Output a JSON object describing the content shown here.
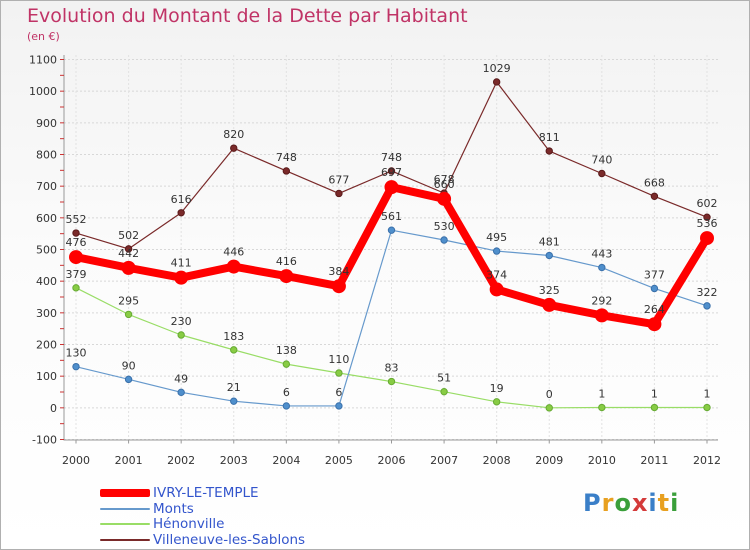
{
  "header": {
    "title": "Evolution du Montant de la Dette par Habitant",
    "subtitle": "(en €)"
  },
  "logo": {
    "letters": [
      "P",
      "r",
      "o",
      "x",
      "i",
      "t",
      "i"
    ],
    "colors": [
      "#3a7fc8",
      "#e8a020",
      "#3a9f3a",
      "#d43a3a",
      "#3a7fc8",
      "#e8a020",
      "#3a9f3a"
    ]
  },
  "chart_data": {
    "type": "line",
    "x": [
      "2000",
      "2001",
      "2002",
      "2003",
      "2004",
      "2005",
      "2006",
      "2007",
      "2008",
      "2009",
      "2010",
      "2011",
      "2012"
    ],
    "ylim": [
      -100,
      1100
    ],
    "yticks": [
      "-100",
      "0",
      "100",
      "200",
      "300",
      "400",
      "500",
      "600",
      "700",
      "800",
      "900",
      "1000",
      "1100"
    ],
    "grid": true,
    "legend_position": "bottom-left",
    "series": [
      {
        "name": "Villeneuve-les-Sablons",
        "color": "#7a2a2a",
        "values": [
          552,
          502,
          616,
          820,
          748,
          677,
          748,
          678,
          1029,
          811,
          740,
          668,
          602
        ]
      },
      {
        "name": "Hénonville",
        "color": "#99dd66",
        "values": [
          379,
          295,
          230,
          183,
          138,
          110,
          83,
          51,
          19,
          0,
          1,
          1,
          1
        ]
      },
      {
        "name": "Monts",
        "color": "#6699cc",
        "values": [
          130,
          90,
          49,
          21,
          6,
          6,
          561,
          530,
          495,
          481,
          443,
          377,
          322
        ]
      },
      {
        "name": "IVRY-LE-TEMPLE",
        "color": "#ff0000",
        "values": [
          476,
          442,
          411,
          446,
          416,
          384,
          697,
          660,
          374,
          325,
          292,
          264,
          536
        ]
      }
    ],
    "legend": [
      "IVRY-LE-TEMPLE",
      "Monts",
      "Hénonville",
      "Villeneuve-les-Sablons"
    ]
  }
}
